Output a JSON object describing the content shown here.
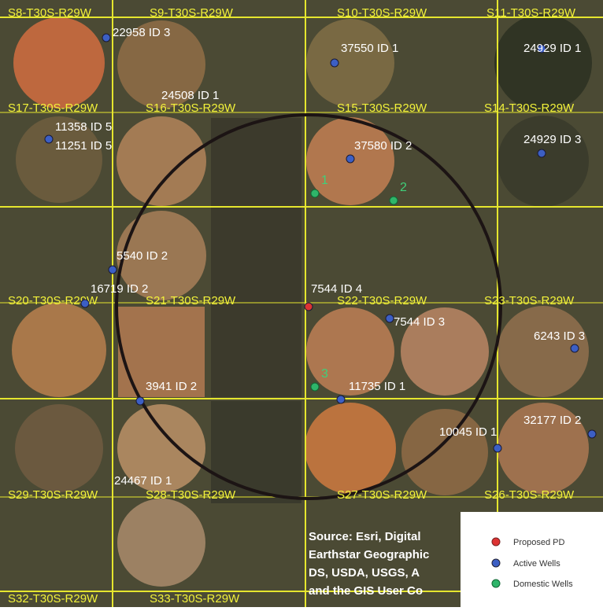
{
  "sections": [
    "S8-T30S-R29W",
    "S9-T30S-R29W",
    "S10-T30S-R29W",
    "S11-T30S-R29W",
    "S17-T30S-R29W",
    "S16-T30S-R29W",
    "S15-T30S-R29W",
    "S14-T30S-R29W",
    "S20-T30S-R29W",
    "S21-T30S-R29W",
    "S22-T30S-R29W",
    "S23-T30S-R29W",
    "S29-T30S-R29W",
    "S28-T30S-R29W",
    "S27-T30S-R29W",
    "S26-T30S-R29W",
    "S32-T30S-R29W",
    "S33-T30S-R29W"
  ],
  "wells": [
    "22958 ID 3",
    "37550 ID 1",
    "24929 ID 1",
    "24508 ID 1",
    "11358 ID 5",
    "11251 ID 5",
    "37580 ID 2",
    "24929 ID 3",
    "5540 ID 2",
    "16719 ID 2",
    "7544 ID 4",
    "7544 ID 3",
    "6243 ID 3",
    "3941 ID 2",
    "11735 ID 1",
    "32177 ID 2",
    "10045 ID 1",
    "24467 ID 1"
  ],
  "domestic_numbers": [
    "1",
    "2",
    "3"
  ],
  "source": [
    "Source: Esri, Digital",
    "Earthstar Geographic",
    "DS, USDA, USGS, A",
    "and the GIS User Co"
  ],
  "legend": [
    "Proposed PD",
    "Active Wells",
    "Domestic Wells"
  ]
}
